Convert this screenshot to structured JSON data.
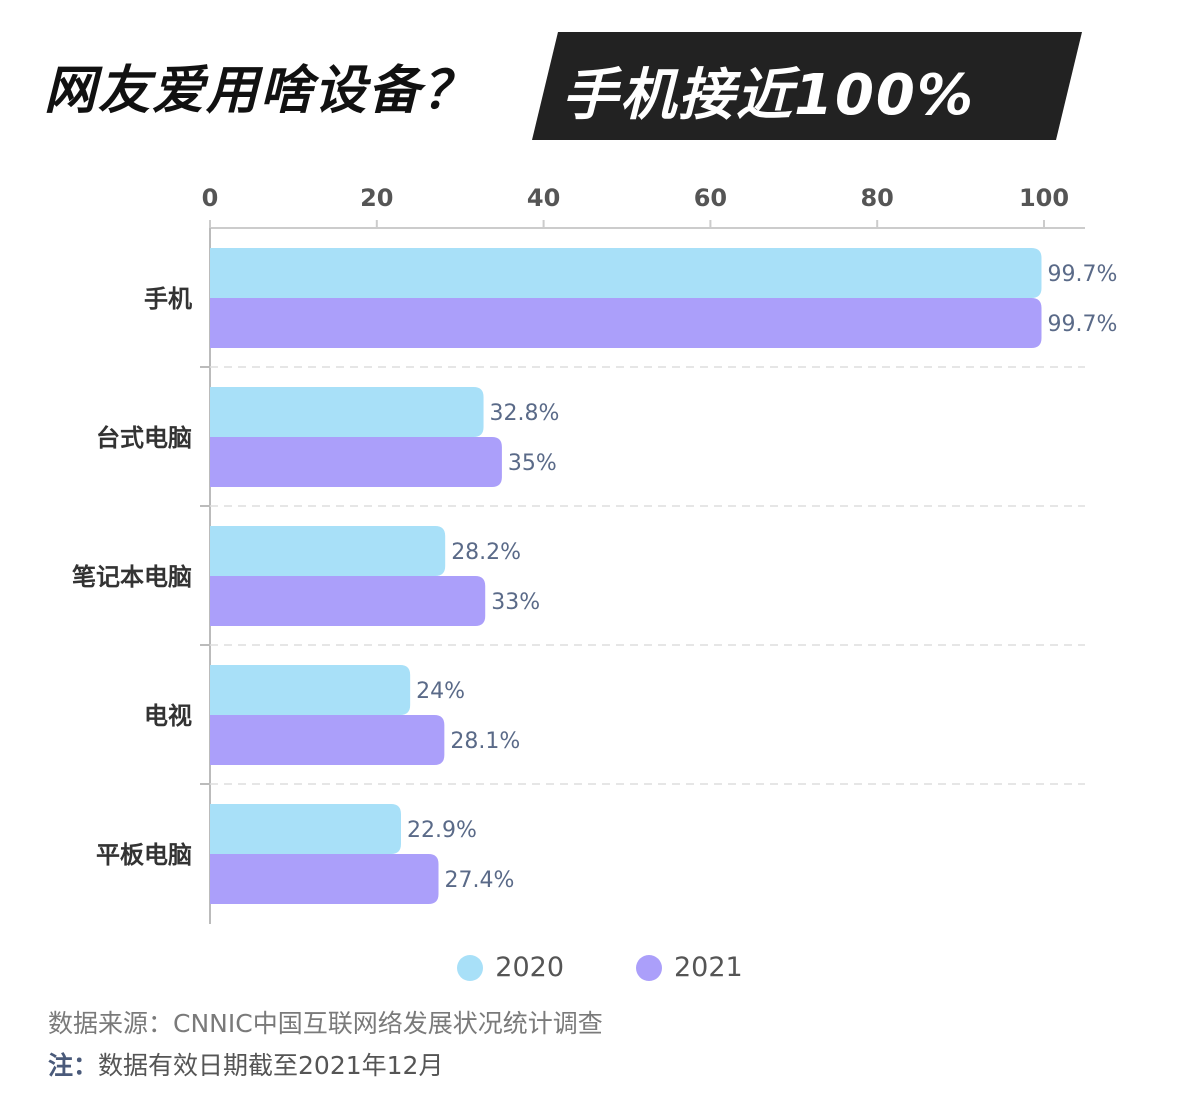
{
  "title": {
    "part1": "网友爱用啥设备？",
    "part2": "手机接近100%"
  },
  "chart_data": {
    "type": "bar",
    "orientation": "horizontal",
    "categories": [
      "手机",
      "台式电脑",
      "笔记本电脑",
      "电视",
      "平板电脑"
    ],
    "series": [
      {
        "name": "2020",
        "color": "#a8e0f8",
        "values": [
          99.7,
          32.8,
          28.2,
          24,
          22.9
        ],
        "labels": [
          "99.7%",
          "32.8%",
          "28.2%",
          "24%",
          "22.9%"
        ]
      },
      {
        "name": "2021",
        "color": "#ab9ffa",
        "values": [
          99.7,
          35,
          33,
          28.1,
          27.4
        ],
        "labels": [
          "99.7%",
          "35%",
          "33%",
          "28.1%",
          "27.4%"
        ]
      }
    ],
    "xlim": [
      0,
      100
    ],
    "xticks": [
      "0",
      "20",
      "40",
      "60",
      "80",
      "100"
    ],
    "xaxis_position": "top",
    "grid": "dashed horizontal separators",
    "legend_position": "bottom"
  },
  "source": "数据来源：CNNIC中国互联网络发展状况统计调查",
  "note": {
    "label": "注：",
    "text": "数据有效日期截至2021年12月"
  }
}
